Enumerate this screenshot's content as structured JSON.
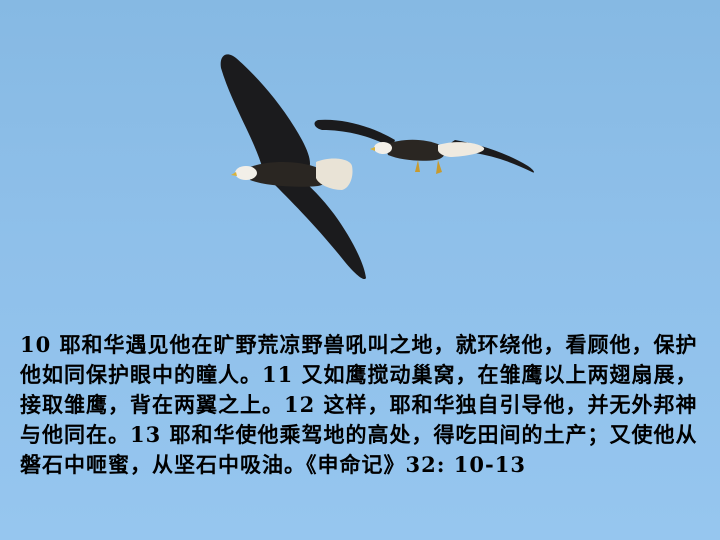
{
  "slide": {
    "background_color": "#8ec0ea",
    "image": {
      "subject": "two bald eagles",
      "icons": [
        "eagle-large-icon",
        "eagle-small-icon"
      ]
    },
    "verse_text": "10 耶和华遇见他在旷野荒凉野兽吼叫之地，就环绕他，看顾他，保护他如同保护眼中的瞳人。11 又如鹰搅动巢窝，在雏鹰以上两翅扇展，接取雏鹰，背在两翼之上。12 这样，耶和华独自引导他，并无外邦神与他同在。13 耶和华使他乘驾地的高处，得吃田间的土产；又使他从磐石中咂蜜，从坚石中吸油。《申命记》32: 10-13"
  }
}
